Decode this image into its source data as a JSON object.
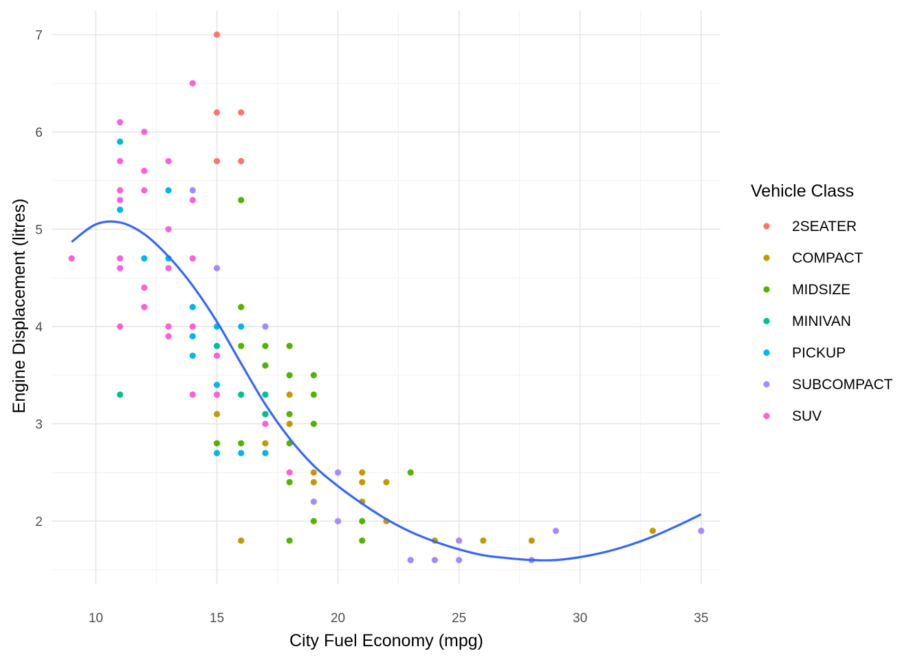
{
  "chart_data": {
    "type": "scatter",
    "xlabel": "City Fuel Economy (mpg)",
    "ylabel": "Engine Displacement (litres)",
    "xlim": [
      8.2,
      35.8
    ],
    "ylim": [
      1.35,
      7.25
    ],
    "x_ticks": [
      10,
      15,
      20,
      25,
      30,
      35
    ],
    "y_ticks": [
      2,
      3,
      4,
      5,
      6,
      7
    ],
    "grid": true,
    "legend_position": "right",
    "legend": {
      "title": "Vehicle Class",
      "entries": [
        {
          "name": "2SEATER",
          "color": "#F8766D"
        },
        {
          "name": "COMPACT",
          "color": "#C49A00"
        },
        {
          "name": "MIDSIZE",
          "color": "#53B400"
        },
        {
          "name": "MINIVAN",
          "color": "#00C094"
        },
        {
          "name": "PICKUP",
          "color": "#00B6EB"
        },
        {
          "name": "SUBCOMPACT",
          "color": "#A58AFF"
        },
        {
          "name": "SUV",
          "color": "#FB61D7"
        }
      ]
    },
    "series": [
      {
        "name": "2SEATER",
        "points": [
          [
            15,
            7.0
          ],
          [
            15,
            6.2
          ],
          [
            16,
            6.2
          ],
          [
            15,
            5.7
          ],
          [
            16,
            5.7
          ]
        ]
      },
      {
        "name": "COMPACT",
        "points": [
          [
            15,
            3.1
          ],
          [
            16,
            1.8
          ],
          [
            17,
            2.8
          ],
          [
            18,
            3.3
          ],
          [
            18,
            3.0
          ],
          [
            19,
            2.5
          ],
          [
            19,
            2.4
          ],
          [
            21,
            2.5
          ],
          [
            21,
            2.4
          ],
          [
            21,
            2.2
          ],
          [
            22,
            2.4
          ],
          [
            22,
            2.0
          ],
          [
            24,
            1.8
          ],
          [
            26,
            1.8
          ],
          [
            28,
            1.8
          ],
          [
            33,
            1.9
          ]
        ]
      },
      {
        "name": "MIDSIZE",
        "points": [
          [
            16,
            5.3
          ],
          [
            16,
            4.2
          ],
          [
            16,
            3.8
          ],
          [
            17,
            3.8
          ],
          [
            18,
            3.8
          ],
          [
            17,
            3.6
          ],
          [
            18,
            3.5
          ],
          [
            19,
            3.5
          ],
          [
            19,
            3.3
          ],
          [
            17,
            3.1
          ],
          [
            18,
            3.1
          ],
          [
            19,
            3.0
          ],
          [
            15,
            2.8
          ],
          [
            16,
            2.8
          ],
          [
            18,
            2.8
          ],
          [
            18,
            2.4
          ],
          [
            23,
            2.5
          ],
          [
            19,
            2.0
          ],
          [
            21,
            2.0
          ],
          [
            18,
            1.8
          ],
          [
            21,
            1.8
          ]
        ]
      },
      {
        "name": "MINIVAN",
        "points": [
          [
            11,
            3.3
          ],
          [
            15,
            3.8
          ],
          [
            16,
            3.3
          ],
          [
            17,
            3.3
          ],
          [
            17,
            3.1
          ]
        ]
      },
      {
        "name": "PICKUP",
        "points": [
          [
            11,
            5.9
          ],
          [
            13,
            5.4
          ],
          [
            11,
            5.2
          ],
          [
            12,
            4.7
          ],
          [
            13,
            4.7
          ],
          [
            14,
            4.2
          ],
          [
            15,
            4.0
          ],
          [
            16,
            4.0
          ],
          [
            14,
            3.9
          ],
          [
            14,
            3.7
          ],
          [
            15,
            3.4
          ],
          [
            15,
            2.7
          ],
          [
            16,
            2.7
          ],
          [
            17,
            2.7
          ]
        ]
      },
      {
        "name": "SUBCOMPACT",
        "points": [
          [
            14,
            5.4
          ],
          [
            15,
            4.6
          ],
          [
            17,
            4.0
          ],
          [
            20,
            2.5
          ],
          [
            19,
            2.2
          ],
          [
            20,
            2.0
          ],
          [
            29,
            1.9
          ],
          [
            35,
            1.9
          ],
          [
            23,
            1.6
          ],
          [
            24,
            1.6
          ],
          [
            25,
            1.8
          ],
          [
            25,
            1.6
          ],
          [
            28,
            1.6
          ]
        ]
      },
      {
        "name": "SUV",
        "points": [
          [
            14,
            6.5
          ],
          [
            11,
            6.1
          ],
          [
            12,
            6.0
          ],
          [
            11,
            5.7
          ],
          [
            13,
            5.7
          ],
          [
            12,
            5.6
          ],
          [
            11,
            5.4
          ],
          [
            12,
            5.4
          ],
          [
            11,
            5.3
          ],
          [
            14,
            5.3
          ],
          [
            13,
            5.0
          ],
          [
            9,
            4.7
          ],
          [
            11,
            4.7
          ],
          [
            14,
            4.7
          ],
          [
            11,
            4.6
          ],
          [
            13,
            4.6
          ],
          [
            12,
            4.4
          ],
          [
            12,
            4.2
          ],
          [
            11,
            4.0
          ],
          [
            13,
            4.0
          ],
          [
            14,
            4.0
          ],
          [
            13,
            3.9
          ],
          [
            15,
            3.7
          ],
          [
            14,
            3.3
          ],
          [
            15,
            3.3
          ],
          [
            17,
            3.0
          ],
          [
            18,
            2.5
          ]
        ]
      }
    ],
    "smooth": {
      "color": "#3366FF",
      "x": [
        9.0,
        10.0,
        11.0,
        12.0,
        13.0,
        14.0,
        15.0,
        16.0,
        17.0,
        18.0,
        19.0,
        20.0,
        21.0,
        22.0,
        23.0,
        24.0,
        25.0,
        26.0,
        27.0,
        28.0,
        29.0,
        30.0,
        31.0,
        32.0,
        33.0,
        34.0,
        35.0
      ],
      "y": [
        4.87,
        5.05,
        5.07,
        4.95,
        4.72,
        4.42,
        4.05,
        3.62,
        3.2,
        2.85,
        2.57,
        2.36,
        2.18,
        2.02,
        1.89,
        1.79,
        1.71,
        1.65,
        1.62,
        1.6,
        1.6,
        1.63,
        1.68,
        1.75,
        1.84,
        1.95,
        2.07
      ]
    }
  }
}
